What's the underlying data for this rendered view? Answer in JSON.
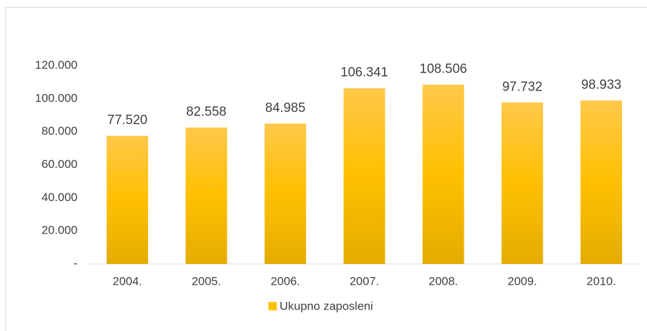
{
  "chart_data": {
    "type": "bar",
    "categories": [
      "2004.",
      "2005.",
      "2006.",
      "2007.",
      "2008.",
      "2009.",
      "2010."
    ],
    "series": [
      {
        "name": "Ukupno zaposleni",
        "color": "#ffc000",
        "values": [
          77520,
          82558,
          84985,
          106341,
          108506,
          97732,
          98933
        ],
        "value_labels": [
          "77.520",
          "82.558",
          "84.985",
          "106.341",
          "108.506",
          "97.732",
          "98.933"
        ]
      }
    ],
    "ylim": [
      0,
      120000
    ],
    "yticks": [
      {
        "value": 0,
        "label": "-"
      },
      {
        "value": 20000,
        "label": "20.000"
      },
      {
        "value": 40000,
        "label": "40.000"
      },
      {
        "value": 60000,
        "label": "60.000"
      },
      {
        "value": 80000,
        "label": "80.000"
      },
      {
        "value": 100000,
        "label": "100.000"
      },
      {
        "value": 120000,
        "label": "120.000"
      }
    ],
    "grid": false,
    "legend": "bottom"
  }
}
